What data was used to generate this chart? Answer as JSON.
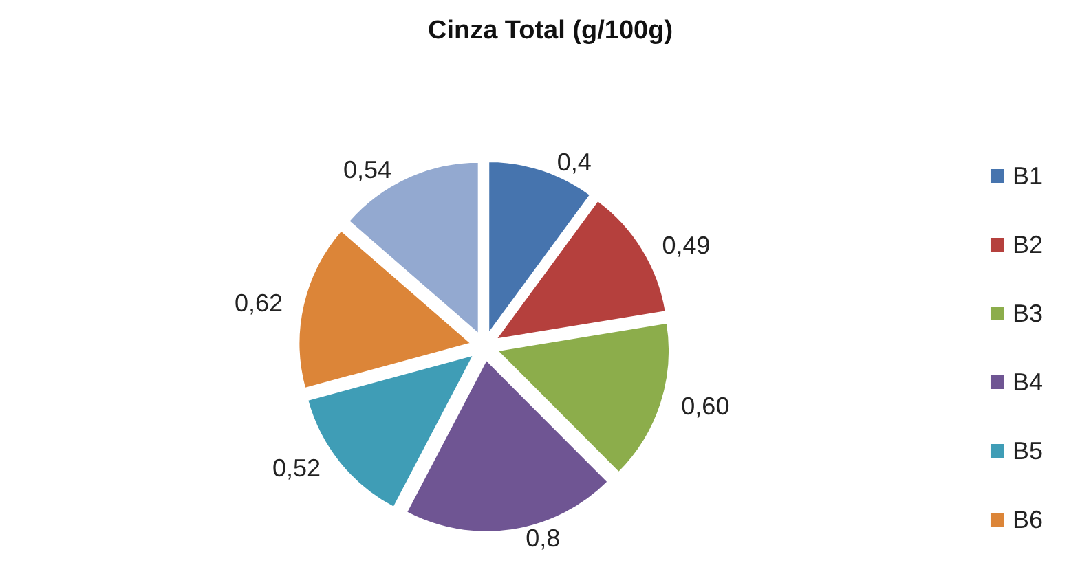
{
  "chart_data": {
    "type": "pie",
    "title": "Cinza Total (g/100g)",
    "categories": [
      "B1",
      "B2",
      "B3",
      "B4",
      "B5",
      "B6",
      null
    ],
    "values": [
      0.4,
      0.49,
      0.6,
      0.8,
      0.52,
      0.62,
      0.54
    ],
    "colors": [
      "#4674ae",
      "#b5403d",
      "#8cad4b",
      "#6f5593",
      "#3f9db6",
      "#dc8538",
      "#93a9d0"
    ],
    "value_labels": [
      "0,4",
      "0,49",
      "0,60",
      "0,8",
      "0,52",
      "0,62",
      "0,54"
    ],
    "legend": "right"
  }
}
